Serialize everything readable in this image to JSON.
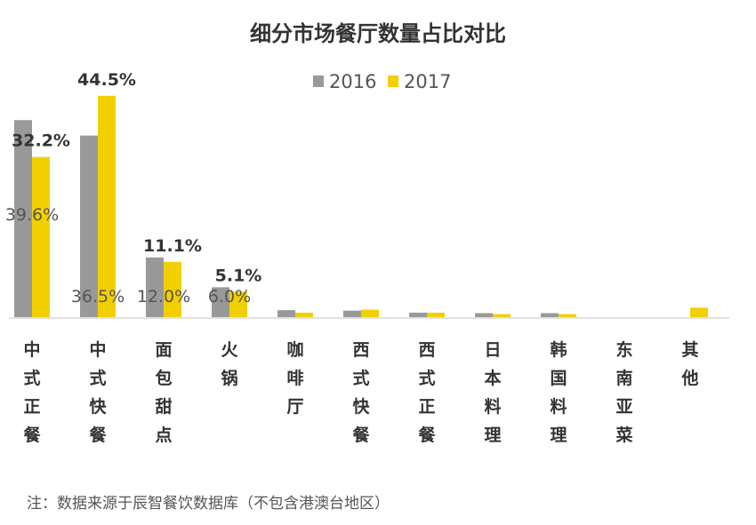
{
  "chart_data": {
    "type": "bar",
    "title": "细分市场餐厅数量占比对比",
    "categories": [
      "中式正餐",
      "中式快餐",
      "面包甜点",
      "火锅",
      "咖啡厅",
      "西式快餐",
      "西式正餐",
      "日本料理",
      "韩国料理",
      "东南亚菜",
      "其他"
    ],
    "series": [
      {
        "name": "2016",
        "color": "#999999",
        "values": [
          39.6,
          36.5,
          12.0,
          6.0,
          1.4,
          1.3,
          0.9,
          0.8,
          0.8,
          0.0,
          0.0
        ],
        "labels": [
          "39.6%",
          "36.5%",
          "12.0%",
          "6.0%",
          "",
          "",
          "",
          "",
          "",
          "",
          ""
        ]
      },
      {
        "name": "2017",
        "color": "#f2d000",
        "values": [
          32.2,
          44.5,
          11.1,
          5.1,
          0.9,
          1.5,
          0.9,
          0.6,
          0.6,
          0.0,
          1.9
        ],
        "labels": [
          "32.2%",
          "44.5%",
          "11.1%",
          "5.1%",
          "",
          "",
          "",
          "",
          "",
          "",
          ""
        ]
      }
    ],
    "ylim": [
      0,
      45
    ],
    "grid": false,
    "legend_position": "top-center"
  },
  "note": "注：数据来源于辰智餐饮数据库（不包含港澳台地区）"
}
